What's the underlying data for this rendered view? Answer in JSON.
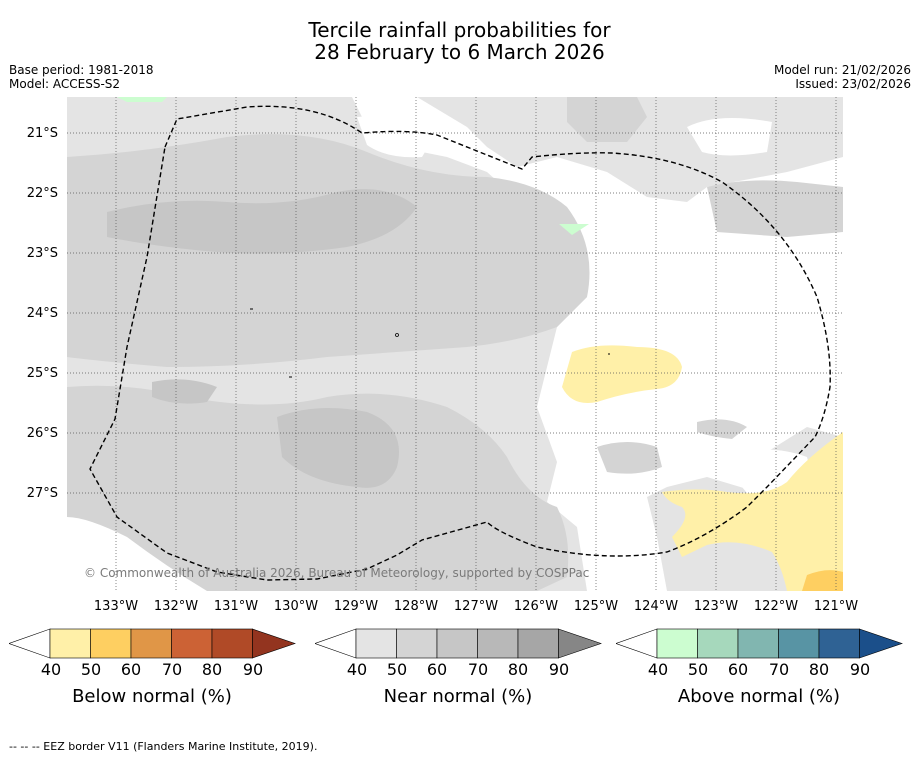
{
  "title_line1": "Tercile rainfall probabilities for",
  "title_line2": "28 February to 6 March 2026",
  "base_period": "Base period: 1981-2018",
  "model": "Model: ACCESS-S2",
  "model_run": "Model run: 21/02/2026",
  "issued": "Issued: 23/02/2026",
  "lat_labels": [
    "21°S",
    "22°S",
    "23°S",
    "24°S",
    "25°S",
    "26°S",
    "27°S"
  ],
  "lon_labels": [
    "133°W",
    "132°W",
    "131°W",
    "130°W",
    "129°W",
    "128°W",
    "127°W",
    "126°W",
    "125°W",
    "124°W",
    "123°W",
    "122°W",
    "121°W"
  ],
  "copyright": "© Commonwealth of Australia 2026, Bureau of Meteorology, supported by COSPPac",
  "colorbars": [
    {
      "label": "Below normal (%)",
      "ticks": [
        "40",
        "50",
        "60",
        "70",
        "80",
        "90"
      ],
      "colors": [
        "#ffffff",
        "#fff0a8",
        "#fecf61",
        "#e09647",
        "#cc6235",
        "#b04a27",
        "#93341f"
      ]
    },
    {
      "label": "Near normal (%)",
      "ticks": [
        "40",
        "50",
        "60",
        "70",
        "80",
        "90"
      ],
      "colors": [
        "#ffffff",
        "#e4e4e4",
        "#d4d4d4",
        "#c6c6c6",
        "#b8b8b8",
        "#a6a6a6",
        "#868686"
      ]
    },
    {
      "label": "Above normal (%)",
      "ticks": [
        "40",
        "50",
        "60",
        "70",
        "80",
        "90"
      ],
      "colors": [
        "#ffffff",
        "#ccfdd0",
        "#a6d8bc",
        "#81b6b0",
        "#5894a4",
        "#2f6294",
        "#1b4f8a"
      ]
    }
  ],
  "footer": "--  --  -- EEZ border V11 (Flanders Marine Institute, 2019).",
  "colors": {
    "near_light": "#e4e4e4",
    "near_mid": "#d4d4d4",
    "near_dark": "#c6c6c6",
    "below": "#fff0a8",
    "below_mid": "#fecf61",
    "above": "#ccfdd0"
  }
}
